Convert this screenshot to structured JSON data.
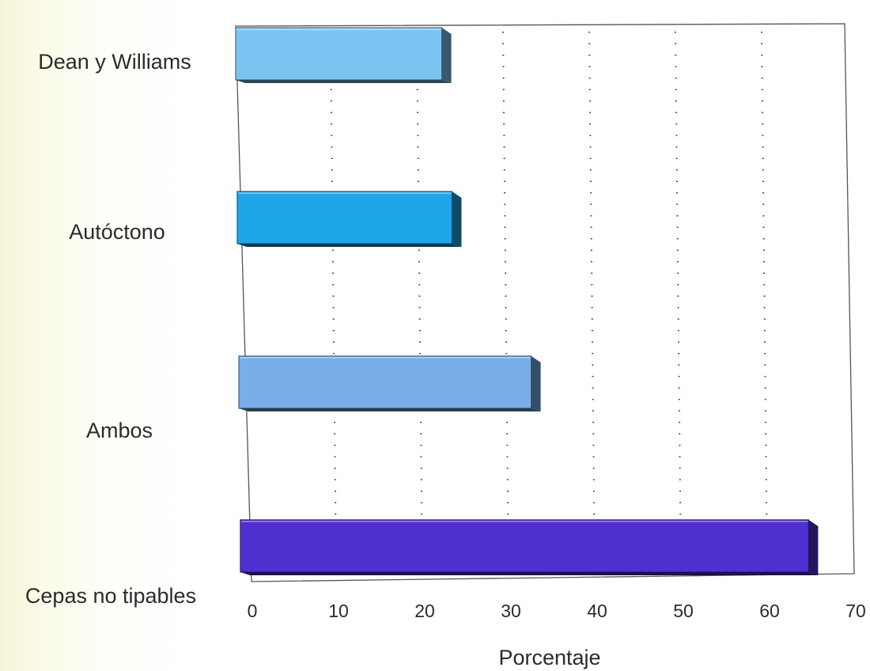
{
  "chart_data": {
    "type": "bar",
    "orientation": "horizontal",
    "categories": [
      "Dean y Williams",
      "Autóctono",
      "Ambos",
      "Cepas no tipables"
    ],
    "values": [
      24,
      25,
      34,
      66
    ],
    "colors": [
      "#7cc4f2",
      "#1ea6ea",
      "#78aeea",
      "#4f2fcf"
    ],
    "xlabel": "Porcentaje",
    "ylabel": "",
    "xlim": [
      0,
      70
    ],
    "xticks": [
      0,
      10,
      20,
      30,
      40,
      50,
      60,
      70
    ],
    "tick_labels": [
      "0",
      "10",
      "20",
      "30",
      "40",
      "50",
      "60",
      "70"
    ],
    "grid": "vertical dotted",
    "legend": "none"
  }
}
